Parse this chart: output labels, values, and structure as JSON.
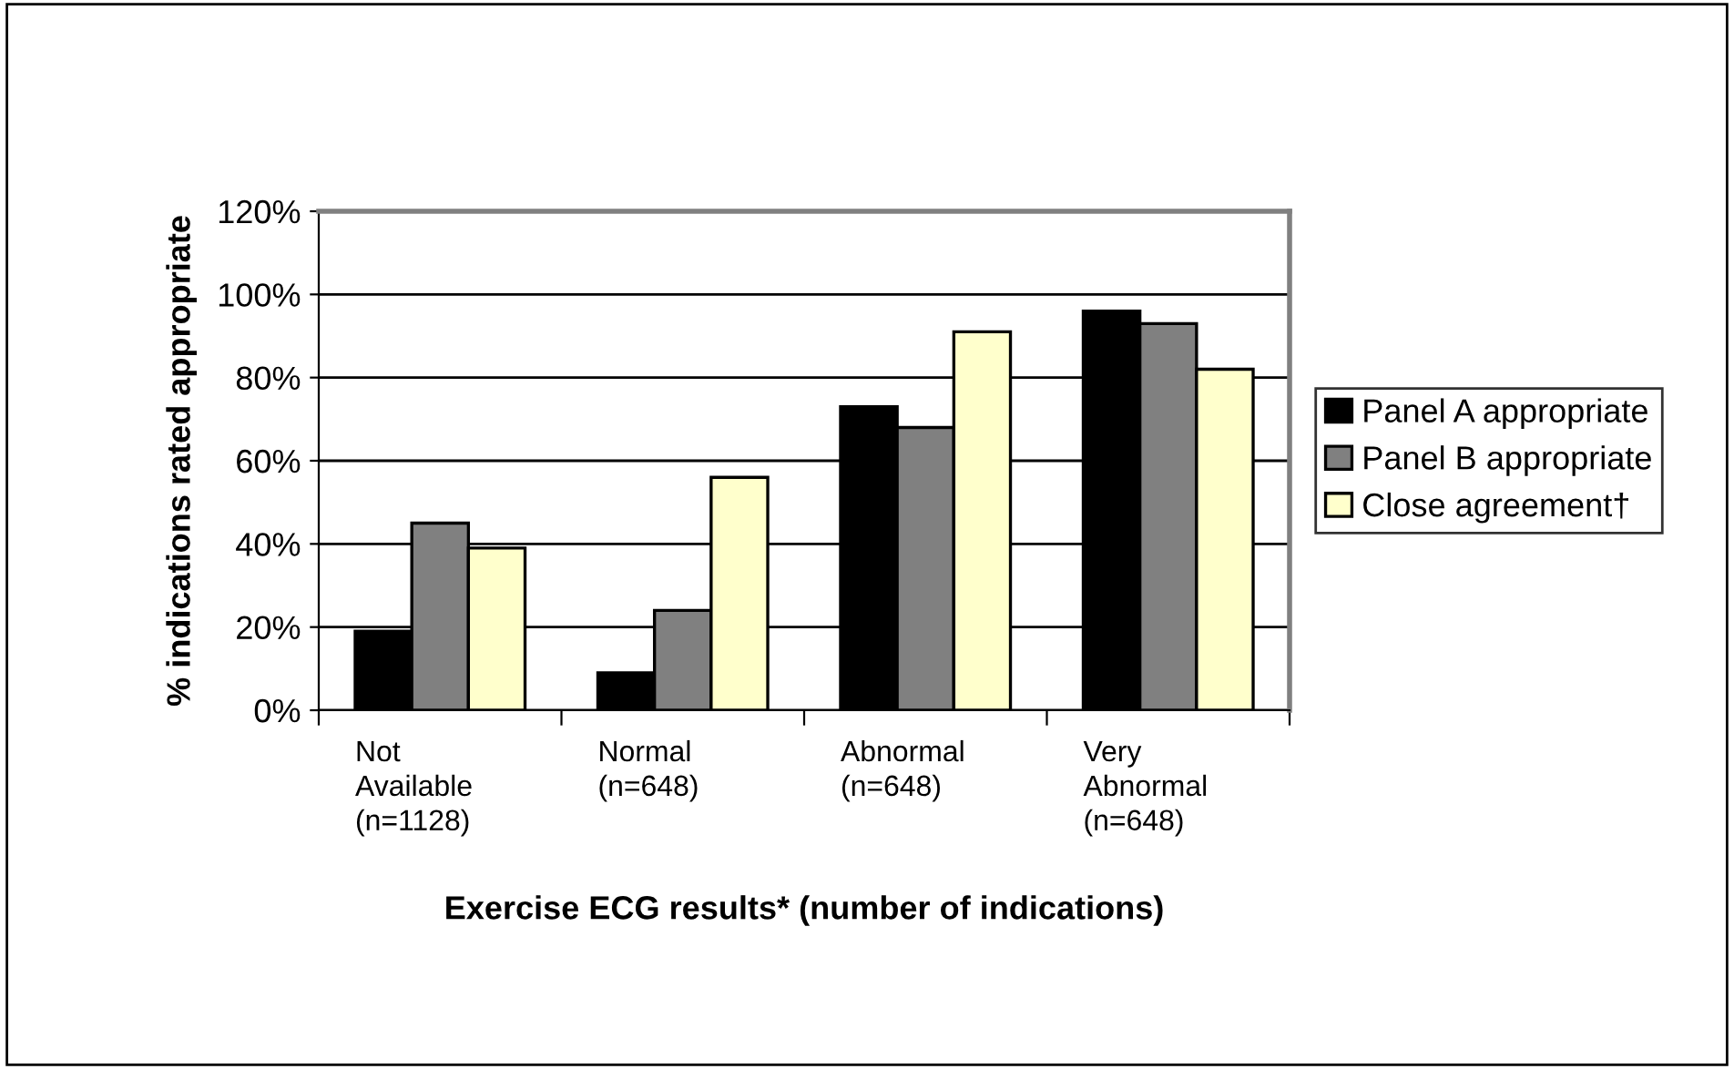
{
  "chart_data": {
    "type": "bar",
    "categories": [
      "Not\nAvailable\n(n=1128)",
      "Normal\n(n=648)",
      "Abnormal\n(n=648)",
      "Very\nAbnormal\n(n=648)"
    ],
    "series": [
      {
        "name": "Panel A appropriate",
        "color": "#000000",
        "values": [
          19,
          9,
          73,
          96
        ]
      },
      {
        "name": "Panel B appropriate",
        "color": "#808080",
        "values": [
          45,
          24,
          68,
          93
        ]
      },
      {
        "name": "Close agreement†",
        "color": "#ffffcc",
        "values": [
          39,
          56,
          91,
          82
        ]
      }
    ],
    "xlabel": "Exercise ECG results* (number of indications)",
    "ylabel": "% indications rated appropriate",
    "ylim": [
      0,
      120
    ],
    "yticks": [
      {
        "value": 0,
        "label": "0%"
      },
      {
        "value": 20,
        "label": "20%"
      },
      {
        "value": 40,
        "label": "40%"
      },
      {
        "value": 60,
        "label": "60%"
      },
      {
        "value": 80,
        "label": "80%"
      },
      {
        "value": 100,
        "label": "100%"
      },
      {
        "value": 120,
        "label": "120%"
      }
    ],
    "grid": "y",
    "legend": "right"
  }
}
